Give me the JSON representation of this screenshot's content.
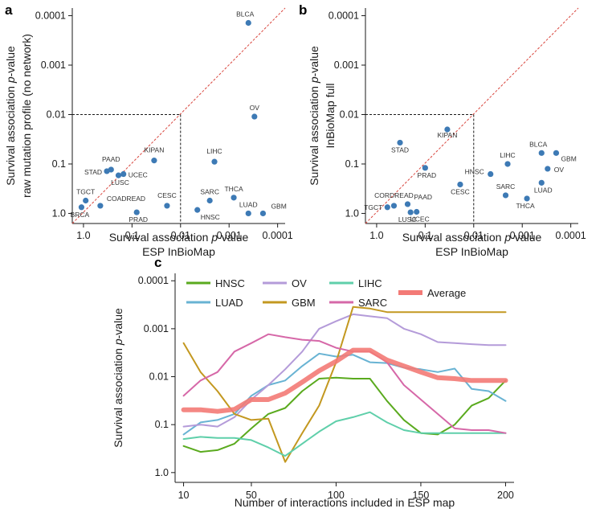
{
  "panels": {
    "a": "a",
    "b": "b",
    "c": "c"
  },
  "chart_data": [
    {
      "id": "a",
      "type": "scatter",
      "xlabel_lines": [
        "Survival association p-value",
        "ESP InBioMap"
      ],
      "ylabel_lines": [
        "Survival association p-value",
        "raw mutation profile (no network)"
      ],
      "axis_scale": "log10-reversed",
      "xlim": [
        1.7,
        7e-05
      ],
      "ylim": [
        1.6,
        7e-05
      ],
      "xticks": [
        1.0,
        0.1,
        0.01,
        0.001,
        0.0001
      ],
      "yticks": [
        1.0,
        0.1,
        0.01,
        0.001,
        0.0001
      ],
      "xtick_labels": [
        "1.0",
        "0.1",
        "0.01",
        "0.001",
        "0.0001"
      ],
      "ytick_labels": [
        "1.0",
        "0.1",
        "0.01",
        "0.001",
        "0.0001"
      ],
      "diagonal": true,
      "threshold": 0.01,
      "color": "#3d7ab5",
      "points": [
        {
          "label": "BLCA",
          "x": 0.0004,
          "y": 0.00014
        },
        {
          "label": "OV",
          "x": 0.0003,
          "y": 0.011
        },
        {
          "label": "LIHC",
          "x": 0.002,
          "y": 0.09
        },
        {
          "label": "KIPAN",
          "x": 0.035,
          "y": 0.085
        },
        {
          "label": "PAAD",
          "x": 0.27,
          "y": 0.13
        },
        {
          "label": "STAD",
          "x": 0.33,
          "y": 0.14
        },
        {
          "label": "UCEC",
          "x": 0.15,
          "y": 0.16
        },
        {
          "label": "LUSC",
          "x": 0.19,
          "y": 0.17
        },
        {
          "label": "SARC",
          "x": 0.0025,
          "y": 0.55
        },
        {
          "label": "THCA",
          "x": 0.0008,
          "y": 0.48
        },
        {
          "label": "CESC",
          "x": 0.019,
          "y": 0.7
        },
        {
          "label": "HNSC",
          "x": 0.0045,
          "y": 0.85
        },
        {
          "label": "LUAD",
          "x": 0.0004,
          "y": 1.0
        },
        {
          "label": "GBM",
          "x": 0.0002,
          "y": 1.0
        },
        {
          "label": "TGCT",
          "x": 0.9,
          "y": 0.55
        },
        {
          "label": "COADREAD",
          "x": 0.45,
          "y": 0.7
        },
        {
          "label": "BRCA",
          "x": 1.1,
          "y": 0.75
        },
        {
          "label": "PRAD",
          "x": 0.08,
          "y": 0.95
        }
      ]
    },
    {
      "id": "b",
      "type": "scatter",
      "xlabel_lines": [
        "Survival association p-value",
        "ESP InBioMap"
      ],
      "ylabel_lines": [
        "Survival association p-value",
        "InBioMap full"
      ],
      "axis_scale": "log10-reversed",
      "xlim": [
        1.7,
        7e-05
      ],
      "ylim": [
        1.6,
        7e-05
      ],
      "xticks": [
        1.0,
        0.1,
        0.01,
        0.001,
        0.0001
      ],
      "yticks": [
        1.0,
        0.1,
        0.01,
        0.001,
        0.0001
      ],
      "xtick_labels": [
        "1.0",
        "0.1",
        "0.01",
        "0.001",
        "0.0001"
      ],
      "ytick_labels": [
        "1.0",
        "0.1",
        "0.01",
        "0.001",
        "0.0001"
      ],
      "diagonal": true,
      "threshold": 0.01,
      "color": "#3d7ab5",
      "points": [
        {
          "label": "KIPAN",
          "x": 0.035,
          "y": 0.02
        },
        {
          "label": "STAD",
          "x": 0.33,
          "y": 0.037
        },
        {
          "label": "PRAD",
          "x": 0.1,
          "y": 0.12
        },
        {
          "label": "CESC",
          "x": 0.019,
          "y": 0.26
        },
        {
          "label": "HNSC",
          "x": 0.0045,
          "y": 0.16
        },
        {
          "label": "LIHC",
          "x": 0.002,
          "y": 0.1
        },
        {
          "label": "BLCA",
          "x": 0.0004,
          "y": 0.06
        },
        {
          "label": "GBM",
          "x": 0.0002,
          "y": 0.06
        },
        {
          "label": "OV",
          "x": 0.0003,
          "y": 0.125
        },
        {
          "label": "LUAD",
          "x": 0.0004,
          "y": 0.24
        },
        {
          "label": "SARC",
          "x": 0.0022,
          "y": 0.43
        },
        {
          "label": "THCA",
          "x": 0.0008,
          "y": 0.5
        },
        {
          "label": "CORDREAD",
          "x": 0.44,
          "y": 0.7
        },
        {
          "label": "TGCT",
          "x": 0.6,
          "y": 0.75
        },
        {
          "label": "PAAD",
          "x": 0.23,
          "y": 0.65
        },
        {
          "label": "LUSC",
          "x": 0.2,
          "y": 0.95
        },
        {
          "label": "UCEC",
          "x": 0.15,
          "y": 0.93
        }
      ]
    },
    {
      "id": "c",
      "type": "line",
      "xlabel": "Number of interactions included in ESP map",
      "ylabel": "Survival association p-value",
      "x": [
        10,
        20,
        30,
        40,
        50,
        60,
        70,
        80,
        90,
        100,
        110,
        120,
        130,
        140,
        150,
        160,
        170,
        180,
        190,
        200
      ],
      "xlim": [
        5,
        205
      ],
      "xticks": [
        10,
        50,
        100,
        150,
        200
      ],
      "xtick_labels": [
        "10",
        "50",
        "100",
        "150",
        "200"
      ],
      "ylim": [
        1.6,
        7e-05
      ],
      "yticks": [
        1.0,
        0.1,
        0.01,
        0.001,
        0.0001
      ],
      "ytick_labels": [
        "1.0",
        "0.1",
        "0.01",
        "0.001",
        "0.0001"
      ],
      "legend": [
        "HNSC",
        "LUAD",
        "OV",
        "GBM",
        "LIHC",
        "SARC",
        "Average"
      ],
      "series": [
        {
          "name": "HNSC",
          "color": "#5aaa1e",
          "width": 2,
          "values": [
            0.28,
            0.37,
            0.34,
            0.25,
            0.12,
            0.06,
            0.045,
            0.02,
            0.011,
            0.0105,
            0.011,
            0.011,
            0.032,
            0.08,
            0.15,
            0.16,
            0.1,
            0.04,
            0.028,
            0.012
          ]
        },
        {
          "name": "LUAD",
          "color": "#68b3d3",
          "width": 2,
          "values": [
            0.16,
            0.09,
            0.08,
            0.06,
            0.025,
            0.015,
            0.012,
            0.006,
            0.0033,
            0.0038,
            0.0035,
            0.005,
            0.0052,
            0.0065,
            0.007,
            0.008,
            0.0068,
            0.018,
            0.02,
            0.032
          ]
        },
        {
          "name": "OV",
          "color": "#b49bd9",
          "width": 2,
          "values": [
            0.11,
            0.1,
            0.11,
            0.07,
            0.03,
            0.015,
            0.007,
            0.003,
            0.001,
            0.0007,
            0.0005,
            0.00055,
            0.0006,
            0.001,
            0.0013,
            0.0019,
            0.002,
            0.0021,
            0.0022,
            0.0022
          ]
        },
        {
          "name": "GBM",
          "color": "#c39820",
          "width": 2,
          "values": [
            0.002,
            0.008,
            0.02,
            0.06,
            0.08,
            0.075,
            0.6,
            0.15,
            0.04,
            0.005,
            0.00035,
            0.00038,
            0.00045,
            0.00045,
            0.00045,
            0.00045,
            0.00045,
            0.00045,
            0.00045,
            0.00045
          ]
        },
        {
          "name": "LIHC",
          "color": "#5fcfaa",
          "width": 2,
          "values": [
            0.2,
            0.18,
            0.19,
            0.19,
            0.21,
            0.3,
            0.45,
            0.25,
            0.14,
            0.085,
            0.07,
            0.055,
            0.09,
            0.13,
            0.15,
            0.15,
            0.15,
            0.15,
            0.15,
            0.15
          ]
        },
        {
          "name": "SARC",
          "color": "#d668a8",
          "width": 2,
          "values": [
            0.025,
            0.012,
            0.008,
            0.003,
            0.002,
            0.0013,
            0.0015,
            0.0017,
            0.0018,
            0.0025,
            0.003,
            0.003,
            0.005,
            0.015,
            0.03,
            0.06,
            0.12,
            0.13,
            0.13,
            0.15
          ]
        },
        {
          "name": "Average",
          "color": "#f37a76",
          "width": 6,
          "values": [
            0.049,
            0.049,
            0.053,
            0.048,
            0.03,
            0.03,
            0.022,
            0.013,
            0.0075,
            0.0048,
            0.0028,
            0.0028,
            0.0045,
            0.006,
            0.008,
            0.0105,
            0.011,
            0.012,
            0.012,
            0.012
          ]
        }
      ]
    }
  ]
}
